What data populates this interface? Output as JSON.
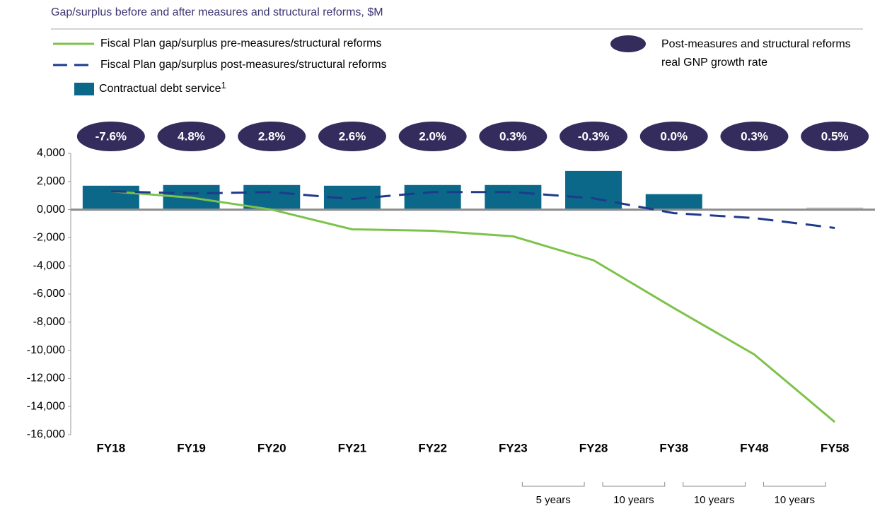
{
  "chart_data": {
    "type": "combo",
    "title": "Gap/surplus before and after measures and structural reforms, $M",
    "categories": [
      "FY18",
      "FY19",
      "FY20",
      "FY21",
      "FY22",
      "FY23",
      "FY28",
      "FY38",
      "FY48",
      "FY58"
    ],
    "series": [
      {
        "name": "Fiscal Plan gap/surplus pre-measures/structural reforms",
        "type": "line",
        "color": "#7dc24b",
        "values": [
          1300,
          850,
          0,
          -1400,
          -1500,
          -1900,
          -3600,
          -7000,
          -10300,
          -15100
        ]
      },
      {
        "name": "Fiscal Plan gap/surplus post-measures/structural reforms",
        "type": "dashed-line",
        "color": "#1f3a8a",
        "values": [
          1300,
          1150,
          1250,
          750,
          1250,
          1250,
          800,
          -250,
          -600,
          -1300
        ]
      },
      {
        "name": "Contractual debt service",
        "name_superscript": "1",
        "type": "bar",
        "color": "#0b6889",
        "colors": [
          "#0b6889",
          "#0b6889",
          "#0b6889",
          "#0b6889",
          "#0b6889",
          "#0b6889",
          "#0b6889",
          "#0b6889",
          "#0b6889",
          "#c8c8c8"
        ],
        "values": [
          1700,
          1750,
          1750,
          1700,
          1750,
          1750,
          2750,
          1100,
          0,
          150
        ]
      },
      {
        "name": "Post-measures and structural reforms real GNP growth rate",
        "type": "badge",
        "color": "#332c5c",
        "values": [
          -7.6,
          4.8,
          2.8,
          2.6,
          2.0,
          0.3,
          -0.3,
          0.0,
          0.3,
          0.5
        ],
        "value_labels": [
          "-7.6%",
          "4.8%",
          "2.8%",
          "2.6%",
          "2.0%",
          "0.3%",
          "-0.3%",
          "0.0%",
          "0.3%",
          "0.5%"
        ]
      }
    ],
    "ylim": [
      -16000,
      4000
    ],
    "yticks": [
      {
        "value": 4000,
        "label": "4,000"
      },
      {
        "value": 2000,
        "label": "2,000"
      },
      {
        "value": 0,
        "label": "0,000"
      },
      {
        "value": -2000,
        "label": "-2,000"
      },
      {
        "value": -4000,
        "label": "-4,000"
      },
      {
        "value": -6000,
        "label": "-6,000"
      },
      {
        "value": -8000,
        "label": "-8,000"
      },
      {
        "value": -10000,
        "label": "-10,000"
      },
      {
        "value": -12000,
        "label": "-12,000"
      },
      {
        "value": -14000,
        "label": "-14,000"
      },
      {
        "value": -16000,
        "label": "-16,000"
      }
    ],
    "period_labels": [
      "5 years",
      "10 years",
      "10 years",
      "10 years"
    ]
  }
}
